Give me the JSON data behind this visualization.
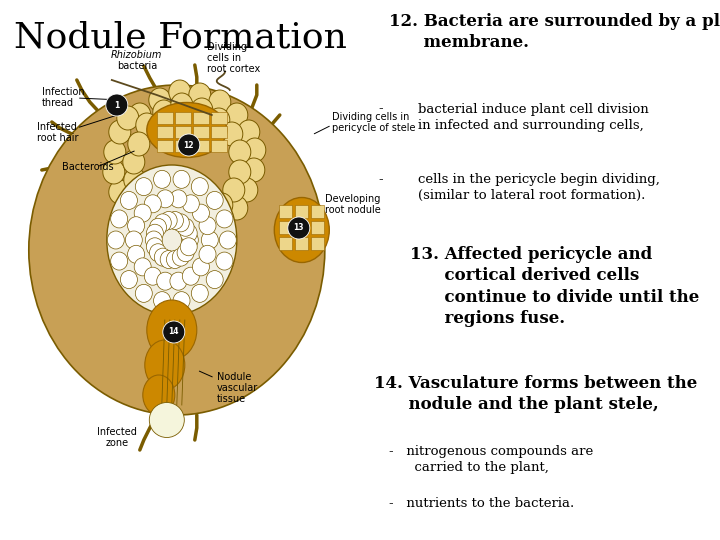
{
  "bg_color": "#ffffff",
  "title": "Nodule Formation",
  "title_fontsize": 26,
  "title_font": "serif",
  "heading12_bold": "12.",
  "heading12_rest": " Bacteria are surrounded by a plant\n     membrane.",
  "heading12_fontsize": 12,
  "bullet12a_dash": "-",
  "bullet12a_text": "bacterial induce plant cell division\nin infected and surrounding cells,",
  "bullet12b_dash": "-",
  "bullet12b_text": "cells in the pericycle begin dividing,\n(similar to lateral root formation).",
  "heading13_text": "13. Affected pericycle and\n      cortical derived cells\n      continue to divide until the\n      regions fuse.",
  "heading13_fontsize": 12,
  "heading14_bold": "14.",
  "heading14_rest": " Vasculature forms between the\n     nodule and the plant stele,",
  "heading14_fontsize": 12,
  "bullet14a_text": "-   nitrogenous compounds are\n      carried to the plant,",
  "bullet14b_text": "-   nutrients to the bacteria.",
  "small_fontsize": 9.5,
  "text_color": "#000000",
  "cell_color_outer": "#C8A055",
  "cell_fill": "#EDD68A",
  "cell_border": "#7A5C00",
  "stele_fill": "#F2EFE0",
  "orange_fill": "#CC8800",
  "orange_dark": "#996600"
}
